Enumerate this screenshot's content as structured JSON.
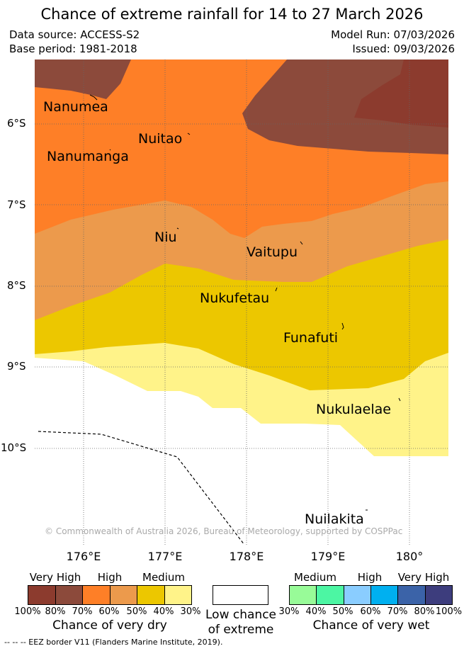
{
  "title": "Chance of extreme rainfall for 14 to 27 March 2026",
  "meta": {
    "data_source": "Data source: ACCESS-S2",
    "base_period": "Base period: 1981-2018",
    "model_run": "Model Run: 07/03/2026",
    "issued": "Issued: 09/03/2026"
  },
  "map": {
    "lat_labels": [
      "6°S",
      "7°S",
      "8°S",
      "9°S",
      "10°S"
    ],
    "lon_labels": [
      "176°E",
      "177°E",
      "178°E",
      "179°E",
      "180°"
    ],
    "places": [
      {
        "name": "Nanumea"
      },
      {
        "name": "Nuitao"
      },
      {
        "name": "Nanumanga"
      },
      {
        "name": "Niu"
      },
      {
        "name": "Vaitupu"
      },
      {
        "name": "Nukufetau"
      },
      {
        "name": "Funafuti"
      },
      {
        "name": "Nukulaelae"
      },
      {
        "name": "Nuilakita"
      }
    ],
    "copyright": "© Commonwealth of Australia 2026, Bureau of Meteorology, supported by COSPPac"
  },
  "legend": {
    "dry": {
      "headers": [
        "Very High",
        "High",
        "Medium"
      ],
      "ticks": [
        "100%",
        "80%",
        "70%",
        "60%",
        "50%",
        "40%",
        "30%"
      ],
      "colors": [
        "#8c3b2e",
        "#8c4a3b",
        "#fe7f27",
        "#ec9a4c",
        "#ecc700",
        "#fff389"
      ],
      "caption": "Chance of very dry"
    },
    "low": {
      "caption_line1": "Low chance",
      "caption_line2": "of extreme"
    },
    "wet": {
      "headers": [
        "Medium",
        "High",
        "Very High"
      ],
      "ticks": [
        "30%",
        "40%",
        "50%",
        "60%",
        "70%",
        "80%",
        "100%"
      ],
      "colors": [
        "#98fb98",
        "#4cf6a3",
        "#8acdff",
        "#00b0f0",
        "#3b63a8",
        "#3d3d7d"
      ],
      "caption": "Chance of very wet"
    },
    "eez": "-- -- -- EEZ border V11 (Flanders Marine Institute, 2019)."
  }
}
